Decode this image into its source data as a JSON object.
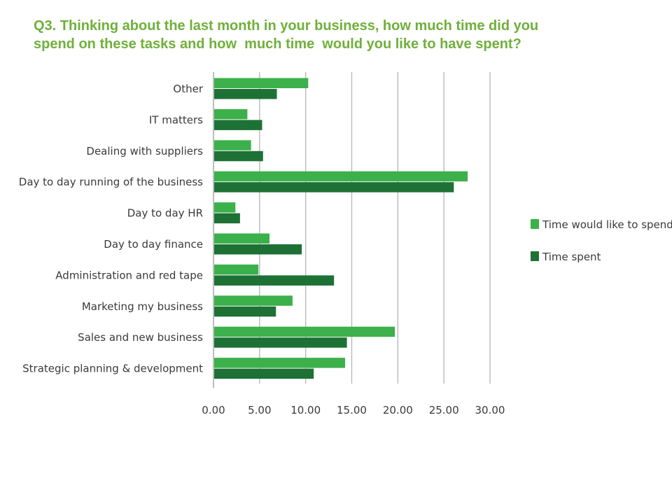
{
  "title": {
    "line1": "Q3. Thinking about the last month in your business, how much time did you",
    "line2": "spend on these tasks and how  much time  would you like to have spent?"
  },
  "colors": {
    "title": "#6fb03a",
    "would_like": "#3cb04a",
    "spent": "#1d7135",
    "grid": "#b5b5b5"
  },
  "chart_data": {
    "type": "bar",
    "orientation": "horizontal",
    "categories": [
      "Other",
      "IT matters",
      "Dealing with suppliers",
      "Day to day running of the business",
      "Day to day HR",
      "Day to day finance",
      "Administration and red tape",
      "Marketing my business",
      "Sales and new business",
      "Strategic planning & development"
    ],
    "series": [
      {
        "name": "Time would like to spend",
        "color": "#3cb04a",
        "values": [
          10.2,
          3.6,
          4.0,
          27.5,
          2.3,
          6.0,
          4.8,
          8.5,
          19.6,
          14.2
        ]
      },
      {
        "name": "Time spent",
        "color": "#1d7135",
        "values": [
          6.8,
          5.2,
          5.3,
          26.0,
          2.8,
          9.5,
          13.0,
          6.7,
          14.4,
          10.8
        ]
      }
    ],
    "xlim": [
      0,
      30
    ],
    "xticks": [
      "0.00",
      "5.00",
      "10.00",
      "15.00",
      "20.00",
      "25.00",
      "30.00"
    ],
    "grid": true,
    "legend_position": "right"
  }
}
